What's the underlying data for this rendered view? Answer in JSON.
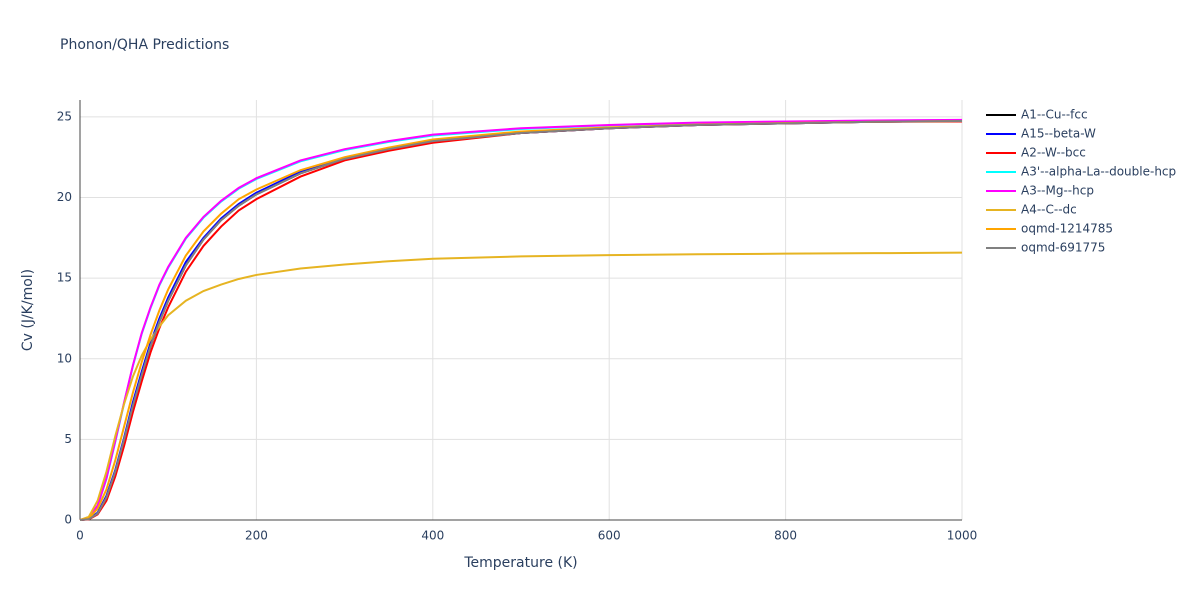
{
  "chart_data": {
    "type": "line",
    "title": "Phonon/QHA Predictions",
    "x_label": "Temperature (K)",
    "y_label": "Cv (J/K/mol)",
    "x": [
      0,
      10,
      20,
      30,
      40,
      50,
      60,
      70,
      80,
      90,
      100,
      120,
      140,
      160,
      180,
      200,
      250,
      300,
      350,
      400,
      500,
      600,
      700,
      800,
      900,
      1000
    ],
    "series": [
      {
        "name": "A1--Cu--fcc",
        "color": "#000000",
        "values": [
          0,
          0.05,
          0.4,
          1.4,
          3.0,
          5.0,
          7.1,
          9.0,
          10.8,
          12.3,
          13.6,
          15.8,
          17.4,
          18.6,
          19.5,
          20.2,
          21.5,
          22.4,
          23.0,
          23.5,
          24.0,
          24.3,
          24.5,
          24.6,
          24.7,
          24.75
        ]
      },
      {
        "name": "A15--beta-W",
        "color": "#0000ff",
        "values": [
          0,
          0.06,
          0.45,
          1.5,
          3.1,
          5.1,
          7.3,
          9.2,
          11.0,
          12.5,
          13.8,
          16.0,
          17.5,
          18.7,
          19.6,
          20.3,
          21.6,
          22.4,
          23.0,
          23.5,
          24.0,
          24.3,
          24.5,
          24.6,
          24.7,
          24.75
        ]
      },
      {
        "name": "A2--W--bcc",
        "color": "#ff0000",
        "values": [
          0,
          0.04,
          0.35,
          1.2,
          2.7,
          4.6,
          6.7,
          8.6,
          10.4,
          11.9,
          13.2,
          15.4,
          17.0,
          18.2,
          19.2,
          19.9,
          21.3,
          22.3,
          22.9,
          23.4,
          24.0,
          24.3,
          24.5,
          24.6,
          24.7,
          24.72
        ]
      },
      {
        "name": "A3'--alpha-La--double-hcp",
        "color": "#00ffff",
        "values": [
          0,
          0.14,
          0.88,
          2.55,
          4.85,
          7.25,
          9.55,
          11.55,
          13.15,
          14.55,
          15.65,
          17.45,
          18.75,
          19.75,
          20.55,
          21.15,
          22.25,
          22.95,
          23.45,
          23.85,
          24.25,
          24.48,
          24.62,
          24.7,
          24.76,
          24.8
        ]
      },
      {
        "name": "A3--Mg--hcp",
        "color": "#ff00ff",
        "values": [
          0,
          0.15,
          0.9,
          2.6,
          4.9,
          7.3,
          9.6,
          11.6,
          13.2,
          14.6,
          15.7,
          17.5,
          18.8,
          19.8,
          20.6,
          21.2,
          22.3,
          23.0,
          23.5,
          23.9,
          24.3,
          24.5,
          24.65,
          24.72,
          24.78,
          24.82
        ]
      },
      {
        "name": "A4--C--dc",
        "color": "#e6b422",
        "values": [
          0,
          0.2,
          1.2,
          3.0,
          5.2,
          7.2,
          8.9,
          10.2,
          11.2,
          12.0,
          12.7,
          13.6,
          14.2,
          14.6,
          14.95,
          15.2,
          15.6,
          15.85,
          16.05,
          16.2,
          16.35,
          16.43,
          16.48,
          16.52,
          16.55,
          16.58
        ]
      },
      {
        "name": "oqmd-1214785",
        "color": "#ffa500",
        "values": [
          0,
          0.1,
          0.7,
          1.9,
          3.7,
          5.8,
          7.9,
          9.8,
          11.5,
          13.0,
          14.3,
          16.4,
          17.9,
          19.0,
          19.9,
          20.5,
          21.7,
          22.5,
          23.1,
          23.6,
          24.1,
          24.35,
          24.52,
          24.62,
          24.7,
          24.75
        ]
      },
      {
        "name": "oqmd-691775",
        "color": "#808080",
        "values": [
          0,
          0.05,
          0.4,
          1.4,
          3.0,
          5.0,
          7.1,
          9.0,
          10.8,
          12.3,
          13.6,
          15.8,
          17.4,
          18.6,
          19.5,
          20.2,
          21.5,
          22.4,
          23.0,
          23.5,
          24.0,
          24.3,
          24.5,
          24.6,
          24.7,
          24.75
        ]
      }
    ],
    "xlim": [
      0,
      1000
    ],
    "ylim": [
      0,
      26.05
    ],
    "xticks": [
      0,
      200,
      400,
      600,
      800,
      1000
    ],
    "yticks": [
      0,
      5,
      10,
      15,
      20,
      25
    ],
    "grid": true
  }
}
